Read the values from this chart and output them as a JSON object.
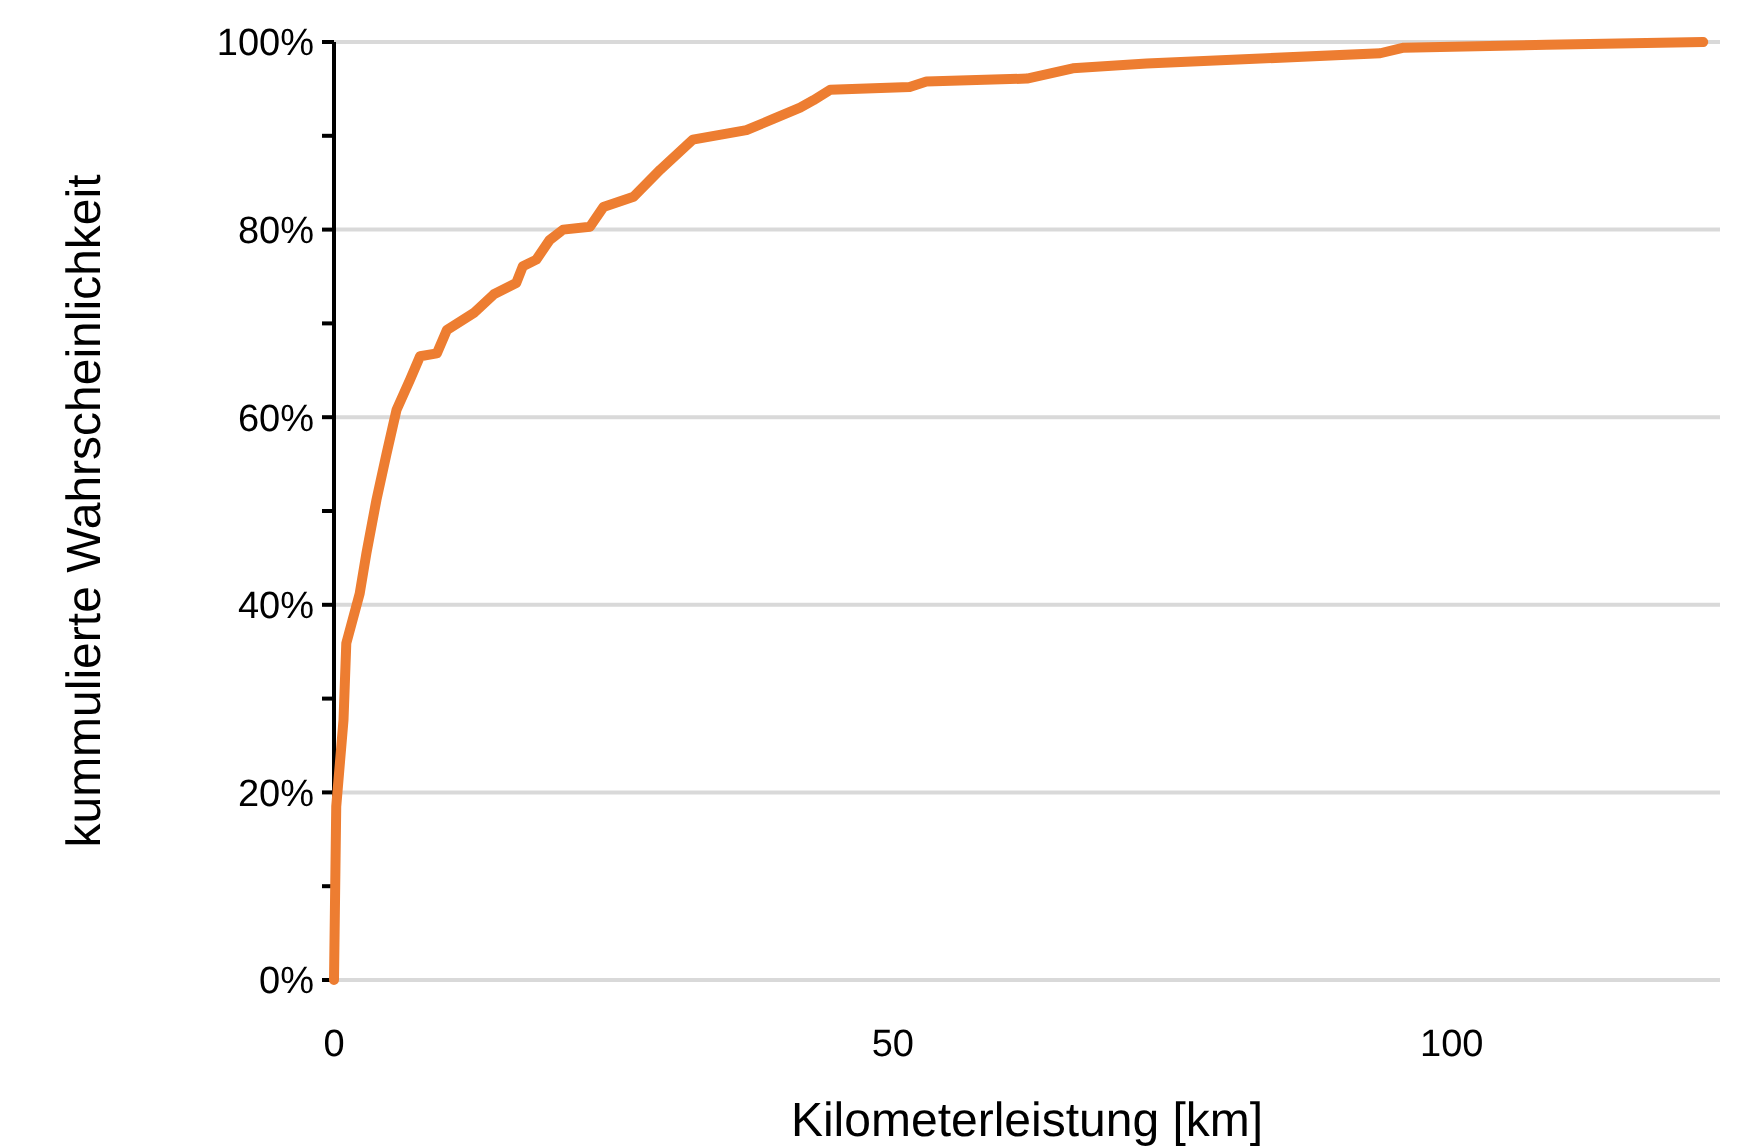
{
  "chart_data": {
    "type": "line",
    "xlabel": "Kilometerleistung [km]",
    "ylabel": "kummulierte Wahrscheinlichkeit",
    "xlim": [
      0,
      124
    ],
    "xticks": [
      0,
      50,
      100
    ],
    "ylim": [
      0,
      100
    ],
    "yticks": [
      {
        "value": 0,
        "label": "0%"
      },
      {
        "value": 10,
        "label": null
      },
      {
        "value": 20,
        "label": "20%"
      },
      {
        "value": 30,
        "label": null
      },
      {
        "value": 40,
        "label": "40%"
      },
      {
        "value": 50,
        "label": null
      },
      {
        "value": 60,
        "label": "60%"
      },
      {
        "value": 70,
        "label": null
      },
      {
        "value": 80,
        "label": "80%"
      },
      {
        "value": 90,
        "label": null
      },
      {
        "value": 100,
        "label": "100%"
      }
    ],
    "grid": "y",
    "marker": "none",
    "line_style": "solid",
    "series": [
      {
        "color": "#ed7d31",
        "x": [
          0,
          0.2,
          0.85,
          1.1,
          2.3,
          2.9,
          3.8,
          4.7,
          5.6,
          6.8,
          7.7,
          9.2,
          10.1,
          12.5,
          14.3,
          16.3,
          16.9,
          18.1,
          19.3,
          20.5,
          22.9,
          24.1,
          26.8,
          29.2,
          32.1,
          36.9,
          39.3,
          41.7,
          42.9,
          44.4,
          51.5,
          53,
          62,
          66.1,
          72.7,
          93.6,
          95.7,
          108.5,
          122.5
        ],
        "values": [
          0,
          18.5,
          27.7,
          35.9,
          41.2,
          45.5,
          51.2,
          56.1,
          60.8,
          64,
          66.5,
          66.8,
          69.3,
          71.1,
          73.1,
          74.3,
          76.1,
          76.8,
          78.9,
          80,
          80.3,
          82.4,
          83.5,
          86.4,
          89.6,
          90.6,
          91.8,
          93,
          93.8,
          94.9,
          95.2,
          95.8,
          96.1,
          97.2,
          97.7,
          98.8,
          99.4,
          99.7,
          100
        ]
      }
    ]
  }
}
